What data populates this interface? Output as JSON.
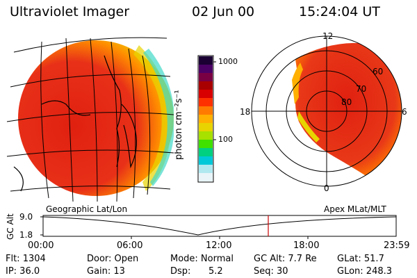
{
  "header": {
    "title": "Ultraviolet Imager",
    "date": "02 Jun 00",
    "time": "15:24:04 UT"
  },
  "colorbar": {
    "unit_label": "photon cm⁻²s⁻¹",
    "ticks": [
      "1000",
      "100"
    ],
    "colors": [
      "#1a0033",
      "#4b0066",
      "#7a0044",
      "#a80000",
      "#d80000",
      "#ff3000",
      "#ff7a00",
      "#ffb000",
      "#e8d400",
      "#a8e000",
      "#40e000",
      "#00d080",
      "#00c8d8",
      "#b0e8f0",
      "#e8f4f8"
    ]
  },
  "left_panel": {
    "caption": "Geographic Lat/Lon"
  },
  "right_panel": {
    "caption": "Apex MLat/MLT",
    "mlt_labels": {
      "top": "12",
      "left": "18",
      "right": "6",
      "bottom": "0"
    },
    "lat_labels": [
      "60",
      "70",
      "80"
    ]
  },
  "timeline": {
    "ylabel": "GC Alt",
    "yticks": [
      "9.0",
      "1.8"
    ],
    "xticks": [
      "00:00",
      "06:00",
      "12:00",
      "18:00",
      "23:59"
    ],
    "current_marker_color": "#cc0000"
  },
  "info": {
    "row1": {
      "flt": "Flt: 1304",
      "door": "Door: Open",
      "mode": "Mode: Normal",
      "gcalt": "GC Alt: 7.7 Re",
      "glat": "GLat: 51.7"
    },
    "row2": {
      "ip": "IP: 36.0",
      "gain": "Gain: 13",
      "dsp_label": "Dsp:",
      "dsp_value": "5.2",
      "seq": "Seq: 30",
      "glon": "GLon: 248.3"
    }
  }
}
